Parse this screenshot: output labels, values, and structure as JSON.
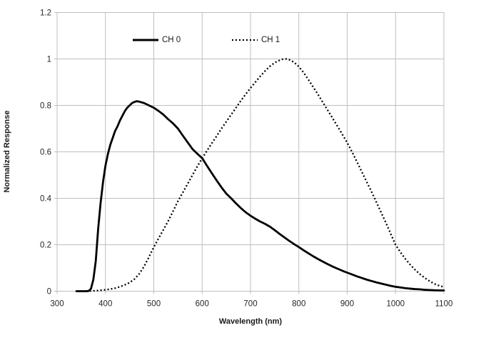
{
  "chart_data": {
    "type": "line",
    "title": "",
    "xlabel": "Wavelength (nm)",
    "ylabel": "Normalized Response",
    "xlim": [
      300,
      1100
    ],
    "ylim": [
      0,
      1.2
    ],
    "xticks": [
      300,
      400,
      500,
      600,
      700,
      800,
      900,
      1000,
      1100
    ],
    "xtick_labels": [
      "300",
      "400",
      "500",
      "600",
      "700",
      "800",
      "900",
      "1000",
      "1100"
    ],
    "yticks": [
      0,
      0.2,
      0.4,
      0.6,
      0.8,
      1,
      1.2
    ],
    "ytick_labels": [
      "0",
      "0.2",
      "0.4",
      "0.6",
      "0.8",
      "1",
      "1.2"
    ],
    "grid": true,
    "legend_position": "top-inside",
    "colors": {
      "series": "#000000",
      "gridline": "#bfbfbf",
      "plot_border": "#bfbfbf",
      "tick_text": "#262626",
      "background": "#ffffff"
    },
    "series": [
      {
        "name": "CH 0",
        "style": "solid",
        "color": "#000000",
        "points": [
          [
            340,
            0
          ],
          [
            350,
            0
          ],
          [
            360,
            0
          ],
          [
            365,
            0.001
          ],
          [
            370,
            0.01
          ],
          [
            375,
            0.05
          ],
          [
            380,
            0.13
          ],
          [
            385,
            0.27
          ],
          [
            390,
            0.38
          ],
          [
            395,
            0.47
          ],
          [
            400,
            0.54
          ],
          [
            405,
            0.59
          ],
          [
            410,
            0.63
          ],
          [
            415,
            0.66
          ],
          [
            420,
            0.69
          ],
          [
            425,
            0.71
          ],
          [
            430,
            0.735
          ],
          [
            435,
            0.755
          ],
          [
            440,
            0.775
          ],
          [
            445,
            0.79
          ],
          [
            450,
            0.8
          ],
          [
            455,
            0.81
          ],
          [
            460,
            0.815
          ],
          [
            465,
            0.818
          ],
          [
            470,
            0.816
          ],
          [
            475,
            0.813
          ],
          [
            480,
            0.81
          ],
          [
            490,
            0.8
          ],
          [
            500,
            0.79
          ],
          [
            510,
            0.776
          ],
          [
            520,
            0.76
          ],
          [
            530,
            0.74
          ],
          [
            540,
            0.722
          ],
          [
            550,
            0.7
          ],
          [
            560,
            0.67
          ],
          [
            570,
            0.641
          ],
          [
            580,
            0.612
          ],
          [
            590,
            0.592
          ],
          [
            600,
            0.573
          ],
          [
            610,
            0.54
          ],
          [
            620,
            0.508
          ],
          [
            630,
            0.477
          ],
          [
            640,
            0.447
          ],
          [
            650,
            0.42
          ],
          [
            660,
            0.4
          ],
          [
            670,
            0.378
          ],
          [
            680,
            0.358
          ],
          [
            690,
            0.34
          ],
          [
            700,
            0.325
          ],
          [
            710,
            0.312
          ],
          [
            720,
            0.3
          ],
          [
            730,
            0.29
          ],
          [
            740,
            0.278
          ],
          [
            750,
            0.263
          ],
          [
            760,
            0.247
          ],
          [
            770,
            0.232
          ],
          [
            780,
            0.217
          ],
          [
            790,
            0.203
          ],
          [
            800,
            0.19
          ],
          [
            810,
            0.176
          ],
          [
            820,
            0.163
          ],
          [
            830,
            0.15
          ],
          [
            840,
            0.138
          ],
          [
            850,
            0.127
          ],
          [
            860,
            0.116
          ],
          [
            870,
            0.106
          ],
          [
            880,
            0.097
          ],
          [
            890,
            0.088
          ],
          [
            900,
            0.08
          ],
          [
            910,
            0.072
          ],
          [
            920,
            0.064
          ],
          [
            930,
            0.057
          ],
          [
            940,
            0.05
          ],
          [
            950,
            0.044
          ],
          [
            960,
            0.038
          ],
          [
            970,
            0.033
          ],
          [
            980,
            0.028
          ],
          [
            990,
            0.023
          ],
          [
            1000,
            0.019
          ],
          [
            1010,
            0.016
          ],
          [
            1020,
            0.013
          ],
          [
            1030,
            0.011
          ],
          [
            1040,
            0.009
          ],
          [
            1050,
            0.008
          ],
          [
            1060,
            0.006
          ],
          [
            1070,
            0.005
          ],
          [
            1080,
            0.004
          ],
          [
            1090,
            0.0035
          ],
          [
            1100,
            0.003
          ]
        ]
      },
      {
        "name": "CH 1",
        "style": "dotted",
        "color": "#000000",
        "points": [
          [
            360,
            0
          ],
          [
            370,
            0.001
          ],
          [
            380,
            0.002
          ],
          [
            390,
            0.004
          ],
          [
            400,
            0.006
          ],
          [
            410,
            0.009
          ],
          [
            420,
            0.013
          ],
          [
            430,
            0.019
          ],
          [
            440,
            0.027
          ],
          [
            450,
            0.037
          ],
          [
            460,
            0.052
          ],
          [
            470,
            0.075
          ],
          [
            480,
            0.107
          ],
          [
            490,
            0.147
          ],
          [
            500,
            0.19
          ],
          [
            510,
            0.228
          ],
          [
            520,
            0.265
          ],
          [
            530,
            0.303
          ],
          [
            540,
            0.345
          ],
          [
            550,
            0.388
          ],
          [
            560,
            0.425
          ],
          [
            570,
            0.462
          ],
          [
            580,
            0.5
          ],
          [
            590,
            0.537
          ],
          [
            600,
            0.572
          ],
          [
            610,
            0.605
          ],
          [
            620,
            0.637
          ],
          [
            630,
            0.668
          ],
          [
            640,
            0.7
          ],
          [
            650,
            0.73
          ],
          [
            660,
            0.76
          ],
          [
            670,
            0.79
          ],
          [
            680,
            0.82
          ],
          [
            690,
            0.848
          ],
          [
            700,
            0.875
          ],
          [
            710,
            0.9
          ],
          [
            720,
            0.925
          ],
          [
            730,
            0.948
          ],
          [
            740,
            0.968
          ],
          [
            750,
            0.984
          ],
          [
            760,
            0.994
          ],
          [
            765,
            0.998
          ],
          [
            770,
            1.0
          ],
          [
            775,
            1.0
          ],
          [
            780,
            0.997
          ],
          [
            790,
            0.986
          ],
          [
            800,
            0.967
          ],
          [
            810,
            0.941
          ],
          [
            820,
            0.91
          ],
          [
            830,
            0.878
          ],
          [
            840,
            0.846
          ],
          [
            850,
            0.812
          ],
          [
            860,
            0.778
          ],
          [
            870,
            0.744
          ],
          [
            880,
            0.71
          ],
          [
            890,
            0.675
          ],
          [
            900,
            0.64
          ],
          [
            910,
            0.6
          ],
          [
            920,
            0.558
          ],
          [
            930,
            0.515
          ],
          [
            940,
            0.472
          ],
          [
            950,
            0.43
          ],
          [
            960,
            0.385
          ],
          [
            970,
            0.34
          ],
          [
            980,
            0.295
          ],
          [
            990,
            0.247
          ],
          [
            1000,
            0.2
          ],
          [
            1010,
            0.168
          ],
          [
            1020,
            0.14
          ],
          [
            1030,
            0.115
          ],
          [
            1040,
            0.093
          ],
          [
            1050,
            0.074
          ],
          [
            1060,
            0.058
          ],
          [
            1070,
            0.044
          ],
          [
            1080,
            0.032
          ],
          [
            1090,
            0.024
          ],
          [
            1100,
            0.018
          ]
        ]
      }
    ]
  }
}
